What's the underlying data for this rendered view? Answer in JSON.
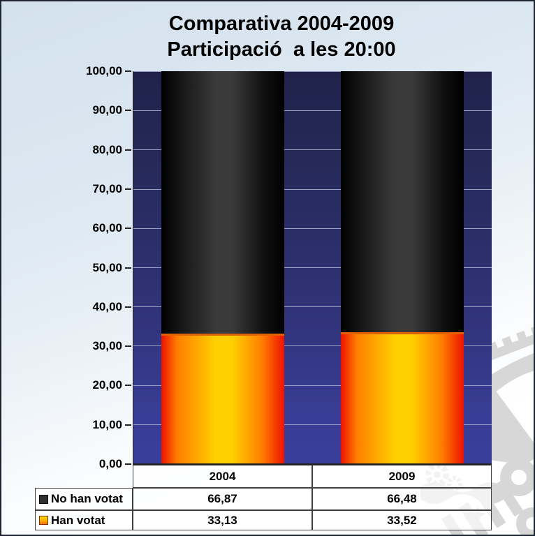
{
  "frame": {
    "border_color": "#1e2430",
    "background_top": "#d4e2ee",
    "background_bottom": "#ffffff"
  },
  "title": {
    "line1": "Comparativa 2004-2009",
    "line2": "Participació  a les 20:00"
  },
  "chart_data": {
    "type": "bar",
    "subtype": "stacked-column-cylinder",
    "title": "Comparativa 2004-2009 Participació a les 20:00",
    "categories": [
      "2004",
      "2009"
    ],
    "series": [
      {
        "name": "No han votat",
        "values": [
          "66,87",
          "66,48"
        ],
        "values_num": [
          66.87,
          66.48
        ],
        "colors": {
          "edge": "#000000",
          "mid": "#121212",
          "center": "#3a3a3a"
        }
      },
      {
        "name": "Han votat",
        "values": [
          "33,13",
          "33,52"
        ],
        "values_num": [
          33.13,
          33.52
        ],
        "colors": {
          "edge": "#ee1200",
          "mid": "#ff7e00",
          "center": "#ffcf00"
        }
      }
    ],
    "ylim": [
      0,
      100
    ],
    "ytick_step": 10,
    "yticks": [
      "100,00",
      "90,00",
      "80,00",
      "70,00",
      "60,00",
      "50,00",
      "40,00",
      "30,00",
      "20,00",
      "10,00",
      "0,00"
    ],
    "grid": true,
    "legend_position": "bottom-table",
    "plot_bg": {
      "top": "#20224b",
      "bottom": "#3a3e9c"
    },
    "gridline_color": "#acb4d4"
  },
  "watermark": {
    "icon": "municipal-crest-seal-watermark",
    "color": "#d7d7d7"
  }
}
